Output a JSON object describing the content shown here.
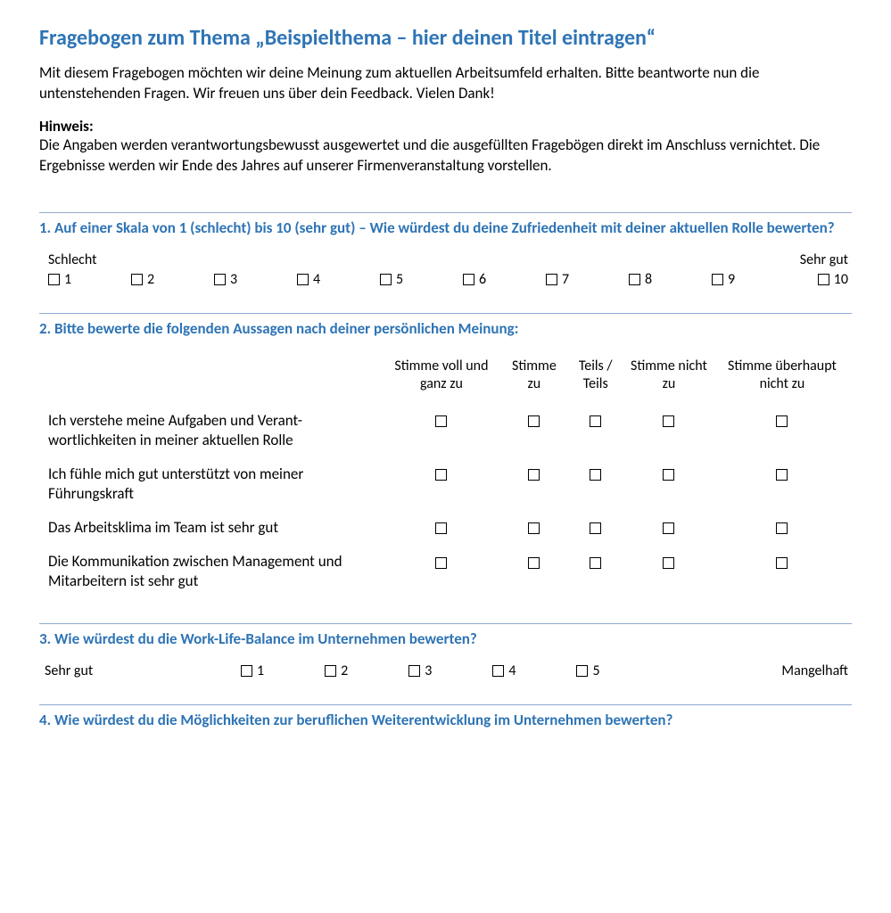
{
  "title": "Fragebogen zum Thema „Beispielthema – hier deinen Titel eintragen“",
  "intro": "Mit diesem Fragebogen möchten wir deine Meinung zum aktuellen Arbeitsumfeld erhalten. Bitte beantworte nun die untenstehenden Fragen. Wir freuen uns über dein Feedback. Vielen Dank!",
  "hint_label": "Hinweis:",
  "hint_text": "Die Angaben werden verantwortungsbewusst ausgewertet und die ausgefüllten Fragebögen direkt im Anschluss vernichtet. Die Ergebnisse werden wir Ende des Jahres auf unserer Firmenveranstaltung vorstellen.",
  "colors": {
    "heading": "#2e74b5",
    "rule": "#8faad0",
    "text": "#000000",
    "background": "#ffffff"
  },
  "q1": {
    "title": "1. Auf einer Skala von 1 (schlecht) bis 10 (sehr gut) – Wie würdest du deine Zufriedenheit mit deiner aktuellen Rolle bewerten?",
    "anchor_low": "Schlecht",
    "anchor_high": "Sehr gut",
    "options": [
      "1",
      "2",
      "3",
      "4",
      "5",
      "6",
      "7",
      "8",
      "9",
      "10"
    ]
  },
  "q2": {
    "title": "2. Bitte bewerte die folgenden Aussagen nach deiner persönlichen Meinung:",
    "headers": [
      "Stimme voll und ganz zu",
      "Stimme zu",
      "Teils / Teils",
      "Stimme nicht zu",
      "Stimme überhaupt nicht zu"
    ],
    "statements": [
      "Ich verstehe meine Aufgaben und Verant-wortlichkeiten in meiner aktuellen Rolle",
      "Ich fühle mich gut unterstützt von meiner Führungskraft",
      "Das Arbeitsklima im Team ist sehr gut",
      "Die Kommunikation zwischen Management und Mitarbeitern ist sehr gut"
    ]
  },
  "q3": {
    "title": "3. Wie würdest du die Work-Life-Balance im Unternehmen bewerten?",
    "anchor_low": "Sehr gut",
    "anchor_high": "Mangelhaft",
    "options": [
      "1",
      "2",
      "3",
      "4",
      "5"
    ]
  },
  "q4": {
    "title": "4. Wie würdest du die Möglichkeiten zur beruflichen Weiterentwicklung im Unternehmen bewerten?"
  }
}
